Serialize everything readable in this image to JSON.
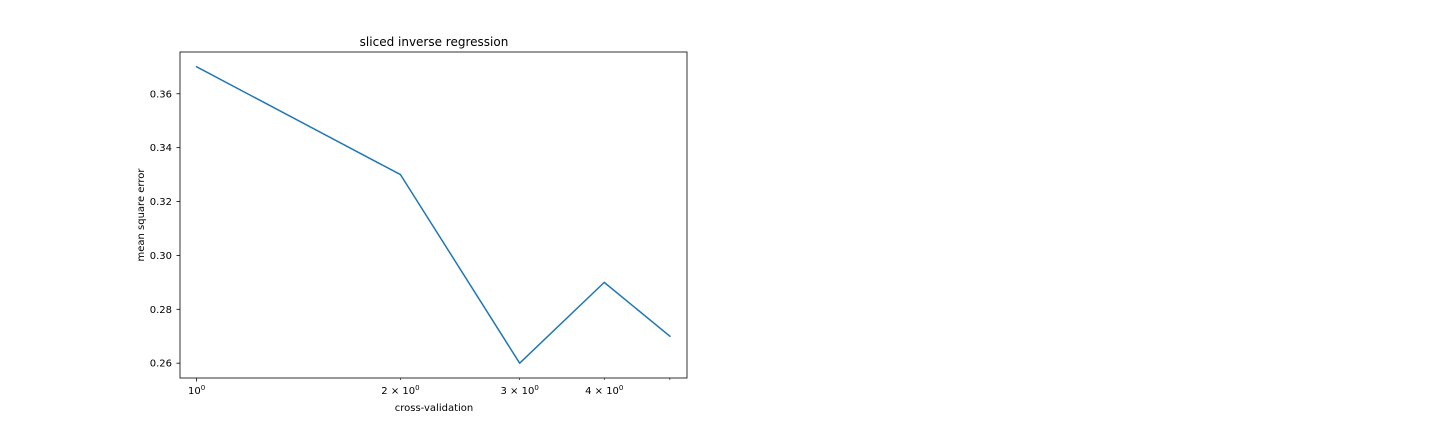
{
  "chart_data": {
    "type": "line",
    "title": "sliced inverse regression",
    "xlabel": "cross-validation",
    "ylabel": "mean square error",
    "x_scale": "log",
    "grid": false,
    "x": [
      1,
      2,
      3,
      4,
      5
    ],
    "series": [
      {
        "values": [
          0.37,
          0.33,
          0.26,
          0.29,
          0.27
        ],
        "color": "#1f77b4"
      }
    ],
    "xlim": [
      0.945,
      5.3
    ],
    "ylim": [
      0.2545,
      0.3755
    ],
    "x_major_ticks": [
      {
        "value": 1,
        "label": "10",
        "sup": "0"
      }
    ],
    "x_minor_ticks": [
      {
        "value": 2,
        "label": "2 × 10",
        "sup": "0"
      },
      {
        "value": 3,
        "label": "3 × 10",
        "sup": "0"
      },
      {
        "value": 4,
        "label": "4 × 10",
        "sup": "0"
      },
      {
        "value": 5,
        "label": "",
        "sup": ""
      }
    ],
    "y_ticks": [
      {
        "value": 0.26,
        "label": "0.26"
      },
      {
        "value": 0.28,
        "label": "0.28"
      },
      {
        "value": 0.3,
        "label": "0.30"
      },
      {
        "value": 0.32,
        "label": "0.32"
      },
      {
        "value": 0.34,
        "label": "0.34"
      },
      {
        "value": 0.36,
        "label": "0.36"
      }
    ]
  }
}
